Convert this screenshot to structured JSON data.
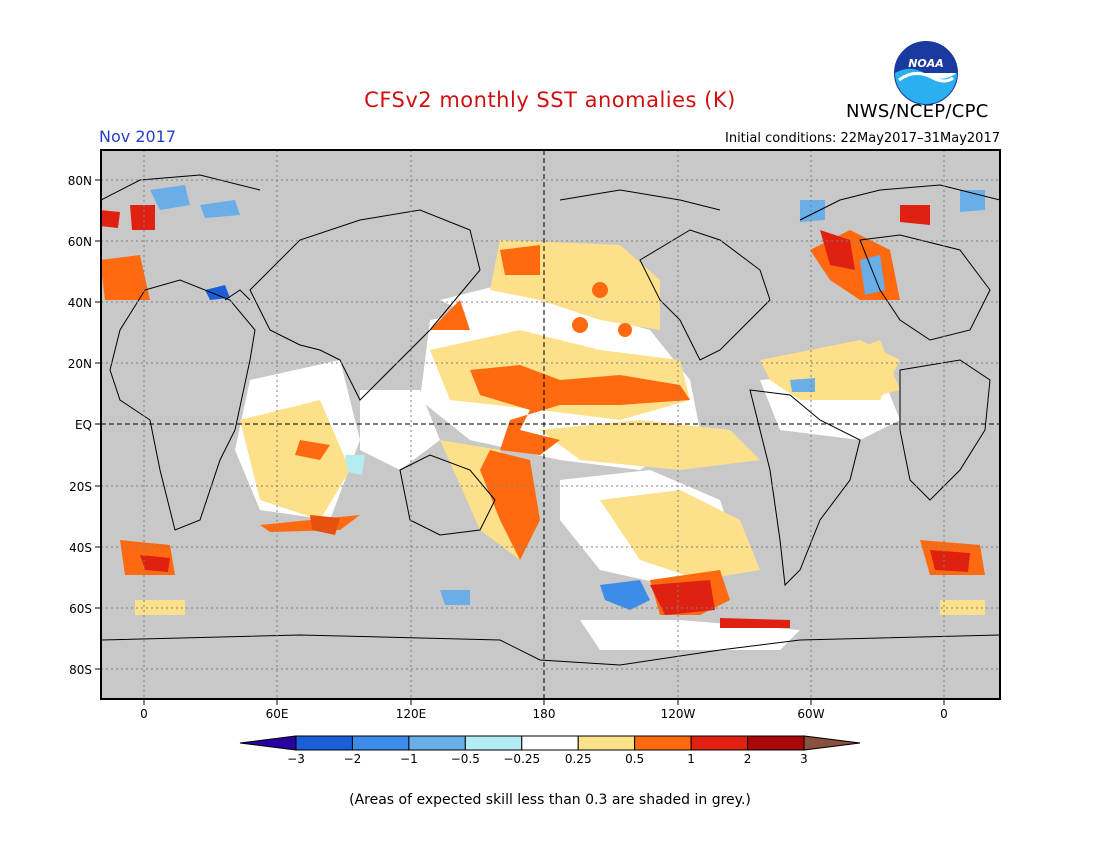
{
  "title": "CFSv2 monthly SST anomalies (K)",
  "agency": "NWS/NCEP/CPC",
  "logo_text": "NOAA",
  "month": "Nov 2017",
  "initial_conditions": "Initial conditions: 22May2017–31May2017",
  "axes": {
    "lat_labels": [
      "80N",
      "60N",
      "40N",
      "20N",
      "EQ",
      "20S",
      "40S",
      "60S",
      "80S"
    ],
    "lon_labels": [
      "0",
      "60E",
      "120E",
      "180",
      "120W",
      "60W",
      "0"
    ]
  },
  "colorbar": {
    "labels": [
      "−3",
      "−2",
      "−1",
      "−0.5",
      "−0.25",
      "0.25",
      "0.5",
      "1",
      "2",
      "3"
    ],
    "colors": [
      "#2a00a0",
      "#1a5fd8",
      "#3c8ce8",
      "#6aaee8",
      "#b4ecf4",
      "#ffffff",
      "#fde08a",
      "#ff6a10",
      "#e02010",
      "#a80808",
      "#8a5040"
    ]
  },
  "footnote": "(Areas of expected skill less than 0.3 are shaded in grey.)"
}
